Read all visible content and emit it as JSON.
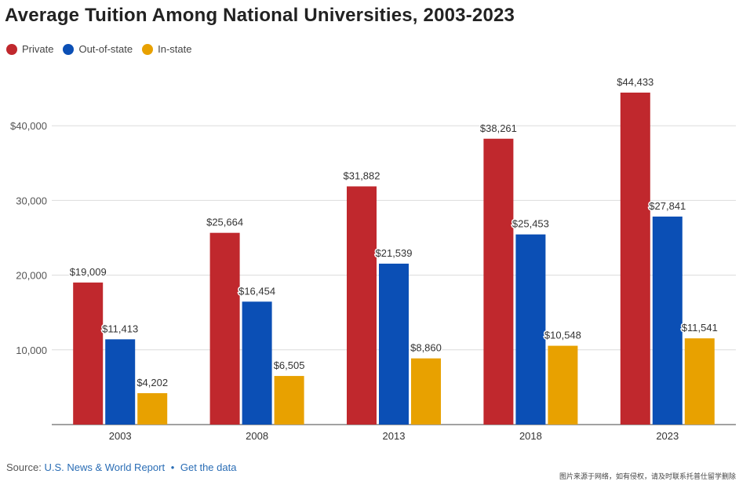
{
  "chart_data": {
    "type": "bar",
    "title": "Average Tuition Among National Universities, 2003-2023",
    "categories": [
      "2003",
      "2008",
      "2013",
      "2018",
      "2023"
    ],
    "series": [
      {
        "name": "Private",
        "color": "#c0282d",
        "values": [
          19009,
          25664,
          31882,
          38261,
          44433
        ],
        "labels": [
          "$19,009",
          "$25,664",
          "$31,882",
          "$38,261",
          "$44,433"
        ]
      },
      {
        "name": "Out-of-state",
        "color": "#0b4fb5",
        "values": [
          11413,
          16454,
          21539,
          25453,
          27841
        ],
        "labels": [
          "$11,413",
          "$16,454",
          "$21,539",
          "$25,453",
          "$27,841"
        ]
      },
      {
        "name": "In-state",
        "color": "#e8a100",
        "values": [
          4202,
          6505,
          8860,
          10548,
          11541
        ],
        "labels": [
          "$4,202",
          "$6,505",
          "$8,860",
          "$10,548",
          "$11,541"
        ]
      }
    ],
    "ylim": [
      0,
      48000
    ],
    "yticks": [
      10000,
      20000,
      30000,
      40000
    ],
    "ytick_labels": [
      "10,000",
      "20,000",
      "30,000",
      "$40,000"
    ],
    "xlabel": "",
    "ylabel": "",
    "grid": true,
    "legend_position": "top-left"
  },
  "source": {
    "prefix": "Source:",
    "name": "U.S. News & World Report",
    "separator": "•",
    "link": "Get the data"
  },
  "watermark": "图片来源于网络，如有侵权，请及时联系托普仕留学删除"
}
